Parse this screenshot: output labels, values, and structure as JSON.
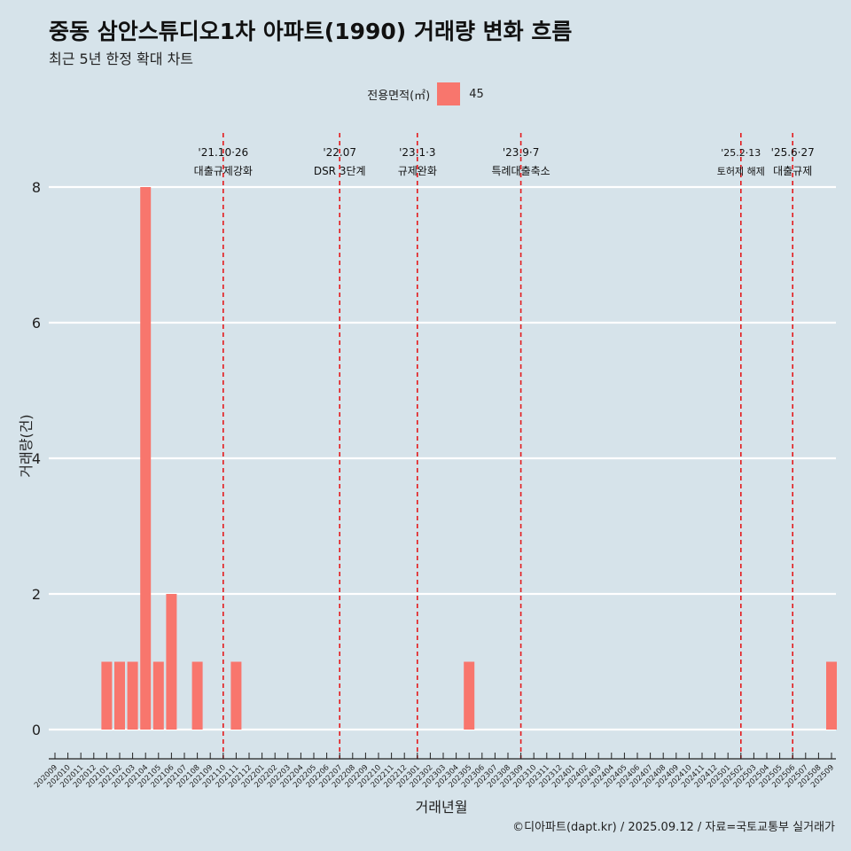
{
  "header": {
    "title": "중동 삼안스튜디오1차 아파트(1990) 거래량 변화 흐름",
    "subtitle": "최근 5년 한정 확대 차트"
  },
  "legend": {
    "title": "전용면적(㎡)",
    "items": [
      {
        "label": "45",
        "color": "#f8766d"
      }
    ]
  },
  "caption": "©디아파트(dapt.kr) / 2025.09.12 / 자료=국토교통부 실거래가",
  "chart_data": {
    "type": "bar",
    "xlabel": "거래년월",
    "ylabel": "거래량(건)",
    "ylim": [
      0,
      8
    ],
    "yticks": [
      0,
      2,
      4,
      6,
      8
    ],
    "grid": "horizontal major gridlines",
    "legend_position": "top",
    "bar_color": "#f8766d",
    "categories": [
      "202009",
      "202010",
      "202011",
      "202012",
      "202101",
      "202102",
      "202103",
      "202104",
      "202105",
      "202106",
      "202107",
      "202108",
      "202109",
      "202110",
      "202111",
      "202112",
      "202201",
      "202202",
      "202203",
      "202204",
      "202205",
      "202206",
      "202207",
      "202208",
      "202209",
      "202210",
      "202211",
      "202212",
      "202301",
      "202302",
      "202303",
      "202304",
      "202305",
      "202306",
      "202307",
      "202308",
      "202309",
      "202310",
      "202311",
      "202312",
      "202401",
      "202402",
      "202403",
      "202404",
      "202405",
      "202406",
      "202407",
      "202408",
      "202409",
      "202410",
      "202411",
      "202412",
      "202501",
      "202502",
      "202503",
      "202504",
      "202505",
      "202506",
      "202507",
      "202508",
      "202509"
    ],
    "series": [
      {
        "name": "45",
        "values": [
          0,
          0,
          0,
          0,
          1,
          1,
          1,
          8,
          1,
          2,
          0,
          1,
          0,
          0,
          1,
          0,
          0,
          0,
          0,
          0,
          0,
          0,
          0,
          0,
          0,
          0,
          0,
          0,
          0,
          0,
          0,
          0,
          1,
          0,
          0,
          0,
          0,
          0,
          0,
          0,
          0,
          0,
          0,
          0,
          0,
          0,
          0,
          0,
          0,
          0,
          0,
          0,
          0,
          0,
          0,
          0,
          0,
          0,
          0,
          0,
          1
        ]
      }
    ],
    "annotations": [
      {
        "x": "202110",
        "date": "'21.10·26",
        "label": "대출규제강화"
      },
      {
        "x": "202207",
        "date": "'22.07",
        "label": "DSR 3단계"
      },
      {
        "x": "202301",
        "date": "'23.1·3",
        "label": "규제완화"
      },
      {
        "x": "202309",
        "date": "'23.9·7",
        "label": "특례대출축소"
      },
      {
        "x": "202502",
        "date": "'25.2·13",
        "label": "토허제 해제"
      },
      {
        "x": "202506",
        "date": "'25.6·27",
        "label": "대출규제"
      }
    ]
  }
}
